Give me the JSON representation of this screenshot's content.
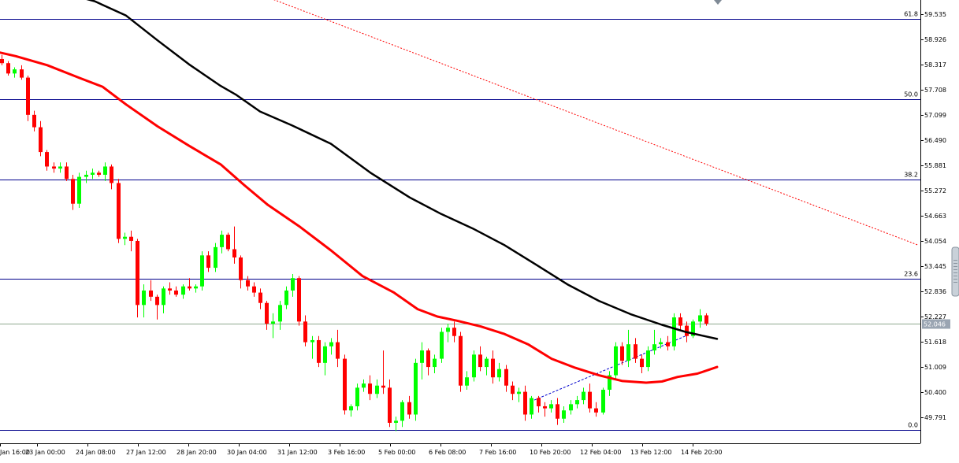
{
  "chart_data": {
    "type": "candlestick",
    "title": "",
    "ylim": [
      49.4,
      60.0
    ],
    "y_ticks": [
      "59.535",
      "58.926",
      "58.317",
      "57.708",
      "57.099",
      "56.490",
      "55.881",
      "55.272",
      "54.663",
      "54.054",
      "53.445",
      "52.836",
      "52.227",
      "51.618",
      "51.009",
      "50.400",
      "49.791"
    ],
    "x_ticks": [
      "Jan 16:00",
      "23 Jan 00:00",
      "24 Jan 08:00",
      "27 Jan 12:00",
      "28 Jan 20:00",
      "30 Jan 04:00",
      "31 Jan 12:00",
      "3 Feb 16:00",
      "5 Feb 00:00",
      "6 Feb 08:00",
      "7 Feb 16:00",
      "10 Feb 20:00",
      "12 Feb 04:00",
      "13 Feb 12:00",
      "14 Feb 20:00"
    ],
    "current_price": "52.046",
    "fibonacci": [
      {
        "label": "61.8",
        "value": 59.42
      },
      {
        "label": "50.0",
        "value": 57.48
      },
      {
        "label": "38.2",
        "value": 55.53
      },
      {
        "label": "23.6",
        "value": 53.14
      },
      {
        "label": "0.0",
        "value": 49.48
      }
    ],
    "horizontal_line": 52.046,
    "colors": {
      "bull": "#00ff00",
      "bear": "#ff0000",
      "ma_fast": "#ff0000",
      "ma_slow": "#000000",
      "fib": "#00008b",
      "trend": "#ff0000",
      "price_tag": "#9aa5b2",
      "current_line": "#8fa88f",
      "small_trend": "#0000cd"
    },
    "candles": [
      [
        58.45,
        58.55,
        58.3,
        58.35
      ],
      [
        58.35,
        58.4,
        58.05,
        58.1
      ],
      [
        58.1,
        58.25,
        58.0,
        58.2
      ],
      [
        58.2,
        58.3,
        57.95,
        58.0
      ],
      [
        58.0,
        58.05,
        56.95,
        57.1
      ],
      [
        57.1,
        57.2,
        56.7,
        56.8
      ],
      [
        56.8,
        56.95,
        56.1,
        56.2
      ],
      [
        56.2,
        56.25,
        55.75,
        55.85
      ],
      [
        55.85,
        55.95,
        55.7,
        55.8
      ],
      [
        55.8,
        55.95,
        55.7,
        55.85
      ],
      [
        55.85,
        55.95,
        55.5,
        55.55
      ],
      [
        55.55,
        55.65,
        54.8,
        54.95
      ],
      [
        54.95,
        55.7,
        54.85,
        55.6
      ],
      [
        55.6,
        55.75,
        55.45,
        55.65
      ],
      [
        55.65,
        55.8,
        55.55,
        55.7
      ],
      [
        55.7,
        55.75,
        55.6,
        55.65
      ],
      [
        55.65,
        55.95,
        55.5,
        55.85
      ],
      [
        55.85,
        55.9,
        55.3,
        55.45
      ],
      [
        55.45,
        55.55,
        54.0,
        54.1
      ],
      [
        54.1,
        54.25,
        53.95,
        54.15
      ],
      [
        54.15,
        54.3,
        53.8,
        54.05
      ],
      [
        54.05,
        54.1,
        52.2,
        52.5
      ],
      [
        52.5,
        53.0,
        52.2,
        52.85
      ],
      [
        52.85,
        53.1,
        52.6,
        52.7
      ],
      [
        52.7,
        52.75,
        52.15,
        52.5
      ],
      [
        52.5,
        52.95,
        52.3,
        52.9
      ],
      [
        52.9,
        53.05,
        52.75,
        52.85
      ],
      [
        52.85,
        52.95,
        52.7,
        52.75
      ],
      [
        52.75,
        53.0,
        52.65,
        52.95
      ],
      [
        52.95,
        53.15,
        52.85,
        52.9
      ],
      [
        52.9,
        53.0,
        52.8,
        52.95
      ],
      [
        52.95,
        53.8,
        52.85,
        53.7
      ],
      [
        53.7,
        53.8,
        53.3,
        53.4
      ],
      [
        53.4,
        54.0,
        53.3,
        53.9
      ],
      [
        53.9,
        54.3,
        53.75,
        54.2
      ],
      [
        54.2,
        54.25,
        53.8,
        53.85
      ],
      [
        53.85,
        54.4,
        53.5,
        53.65
      ],
      [
        53.65,
        53.7,
        52.9,
        53.1
      ],
      [
        53.1,
        53.2,
        52.85,
        52.95
      ],
      [
        52.95,
        53.05,
        52.7,
        52.8
      ],
      [
        52.8,
        52.9,
        52.4,
        52.55
      ],
      [
        52.55,
        52.6,
        51.9,
        52.05
      ],
      [
        52.05,
        52.3,
        51.7,
        52.1
      ],
      [
        52.1,
        52.6,
        51.9,
        52.5
      ],
      [
        52.5,
        52.95,
        52.4,
        52.85
      ],
      [
        52.85,
        53.25,
        52.7,
        53.15
      ],
      [
        53.15,
        53.2,
        52.0,
        52.1
      ],
      [
        52.1,
        52.25,
        51.5,
        51.6
      ],
      [
        51.6,
        51.75,
        51.2,
        51.65
      ],
      [
        51.65,
        51.75,
        51.0,
        51.1
      ],
      [
        51.1,
        51.6,
        50.8,
        51.5
      ],
      [
        51.5,
        51.7,
        51.3,
        51.6
      ],
      [
        51.6,
        51.9,
        51.0,
        51.2
      ],
      [
        51.2,
        51.3,
        49.85,
        49.95
      ],
      [
        49.95,
        50.1,
        49.8,
        50.05
      ],
      [
        50.05,
        50.6,
        49.95,
        50.5
      ],
      [
        50.5,
        50.7,
        50.4,
        50.6
      ],
      [
        50.6,
        50.8,
        50.2,
        50.35
      ],
      [
        50.35,
        50.7,
        50.25,
        50.55
      ],
      [
        50.55,
        51.4,
        50.35,
        50.5
      ],
      [
        50.5,
        50.7,
        49.55,
        49.65
      ],
      [
        49.65,
        49.8,
        49.45,
        49.7
      ],
      [
        49.7,
        50.2,
        49.55,
        50.15
      ],
      [
        50.15,
        50.3,
        49.75,
        49.85
      ],
      [
        49.85,
        51.2,
        49.7,
        51.1
      ],
      [
        51.1,
        51.6,
        50.7,
        51.4
      ],
      [
        51.4,
        51.45,
        50.8,
        51.0
      ],
      [
        51.0,
        51.3,
        50.85,
        51.2
      ],
      [
        51.2,
        51.95,
        51.1,
        51.85
      ],
      [
        51.85,
        52.05,
        51.6,
        51.95
      ],
      [
        51.95,
        52.1,
        51.6,
        51.75
      ],
      [
        51.75,
        51.85,
        50.4,
        50.55
      ],
      [
        50.55,
        50.9,
        50.45,
        50.75
      ],
      [
        50.75,
        51.4,
        50.65,
        51.3
      ],
      [
        51.3,
        51.5,
        50.9,
        51.0
      ],
      [
        51.0,
        51.25,
        50.8,
        51.2
      ],
      [
        51.2,
        51.4,
        50.6,
        50.75
      ],
      [
        50.75,
        51.1,
        50.65,
        50.95
      ],
      [
        50.95,
        51.05,
        50.4,
        50.55
      ],
      [
        50.55,
        50.65,
        50.2,
        50.35
      ],
      [
        50.35,
        50.5,
        50.15,
        50.4
      ],
      [
        50.4,
        50.55,
        49.7,
        49.85
      ],
      [
        49.85,
        50.3,
        49.75,
        50.25
      ],
      [
        50.25,
        50.3,
        49.9,
        50.05
      ],
      [
        50.05,
        50.15,
        49.8,
        50.0
      ],
      [
        50.0,
        50.2,
        49.9,
        50.1
      ],
      [
        50.1,
        50.25,
        49.6,
        49.75
      ],
      [
        49.75,
        50.05,
        49.65,
        49.95
      ],
      [
        49.95,
        50.2,
        49.85,
        50.1
      ],
      [
        50.1,
        50.3,
        50.0,
        50.2
      ],
      [
        50.2,
        50.5,
        50.1,
        50.4
      ],
      [
        50.4,
        50.6,
        49.9,
        50.0
      ],
      [
        50.0,
        50.15,
        49.8,
        49.9
      ],
      [
        49.9,
        50.5,
        49.85,
        50.45
      ],
      [
        50.45,
        50.9,
        50.3,
        50.8
      ],
      [
        50.8,
        51.6,
        50.7,
        51.5
      ],
      [
        51.5,
        51.6,
        51.05,
        51.15
      ],
      [
        51.15,
        51.9,
        51.0,
        51.55
      ],
      [
        51.55,
        51.7,
        51.1,
        51.2
      ],
      [
        51.2,
        51.3,
        50.85,
        51.0
      ],
      [
        51.0,
        51.5,
        50.9,
        51.4
      ],
      [
        51.4,
        51.9,
        51.3,
        51.55
      ],
      [
        51.55,
        51.7,
        51.45,
        51.6
      ],
      [
        51.6,
        51.75,
        51.4,
        51.5
      ],
      [
        51.5,
        52.3,
        51.4,
        52.2
      ],
      [
        52.2,
        52.3,
        51.9,
        52.0
      ],
      [
        52.0,
        52.1,
        51.6,
        51.75
      ],
      [
        51.75,
        52.15,
        51.7,
        52.1
      ],
      [
        52.1,
        52.4,
        51.95,
        52.25
      ],
      [
        52.25,
        52.3,
        52.0,
        52.05
      ]
    ],
    "ma_fast": [
      [
        -10,
        58.65
      ],
      [
        20,
        58.52
      ],
      [
        60,
        58.3
      ],
      [
        100,
        58.0
      ],
      [
        130,
        57.78
      ],
      [
        160,
        57.35
      ],
      [
        200,
        56.82
      ],
      [
        240,
        56.35
      ],
      [
        280,
        55.9
      ],
      [
        310,
        55.4
      ],
      [
        340,
        54.92
      ],
      [
        380,
        54.4
      ],
      [
        420,
        53.82
      ],
      [
        460,
        53.2
      ],
      [
        500,
        52.8
      ],
      [
        530,
        52.4
      ],
      [
        555,
        52.22
      ],
      [
        580,
        52.12
      ],
      [
        610,
        51.98
      ],
      [
        640,
        51.8
      ],
      [
        670,
        51.55
      ],
      [
        700,
        51.2
      ],
      [
        730,
        50.98
      ],
      [
        760,
        50.8
      ],
      [
        790,
        50.66
      ],
      [
        820,
        50.62
      ],
      [
        840,
        50.65
      ],
      [
        860,
        50.76
      ],
      [
        885,
        50.84
      ],
      [
        910,
        51.0
      ]
    ],
    "ma_slow": [
      [
        70,
        60.1
      ],
      [
        120,
        59.85
      ],
      [
        160,
        59.5
      ],
      [
        200,
        58.9
      ],
      [
        240,
        58.32
      ],
      [
        280,
        57.8
      ],
      [
        300,
        57.58
      ],
      [
        330,
        57.18
      ],
      [
        370,
        56.85
      ],
      [
        420,
        56.4
      ],
      [
        470,
        55.7
      ],
      [
        520,
        55.1
      ],
      [
        560,
        54.7
      ],
      [
        600,
        54.35
      ],
      [
        640,
        53.95
      ],
      [
        680,
        53.48
      ],
      [
        720,
        53.0
      ],
      [
        760,
        52.6
      ],
      [
        800,
        52.28
      ],
      [
        840,
        52.02
      ],
      [
        870,
        51.85
      ],
      [
        910,
        51.68
      ]
    ],
    "trend_line": [
      [
        325,
        60.05
      ],
      [
        1165,
        53.95
      ]
    ],
    "small_trend": [
      [
        678,
        50.2
      ],
      [
        870,
        51.75
      ]
    ]
  }
}
